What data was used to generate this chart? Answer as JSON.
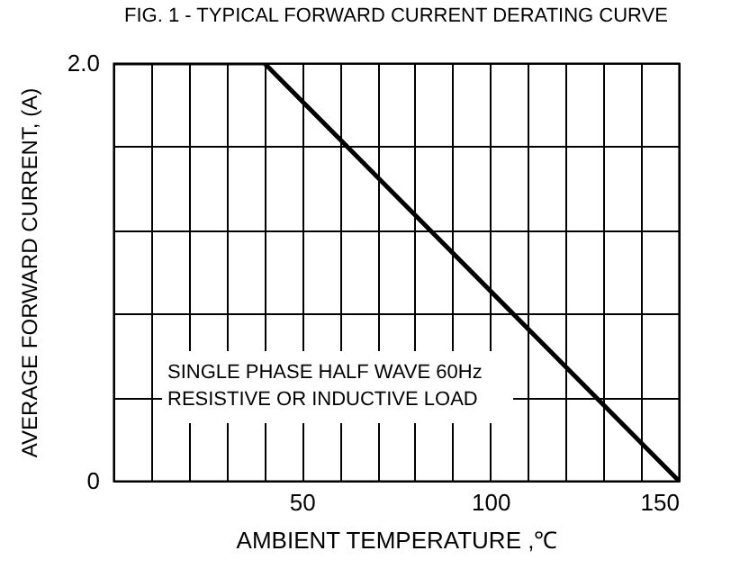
{
  "chart_data": {
    "type": "line",
    "title": "FIG. 1 - TYPICAL FORWARD CURRENT DERATING CURVE",
    "xlabel": "AMBIENT TEMPERATURE ,℃",
    "ylabel": "AVERAGE FORWARD CURRENT, (A)",
    "annotations": [
      "SINGLE PHASE HALF WAVE  60Hz",
      "RESISTIVE OR INDUCTIVE LOAD"
    ],
    "x": [
      0,
      40,
      150
    ],
    "series": [
      {
        "color": "#000000",
        "values": [
          2.0,
          2.0,
          0
        ]
      }
    ],
    "xlim": [
      0,
      150
    ],
    "xticks": [
      {
        "value": 0,
        "label": null
      },
      {
        "value": 10,
        "label": null
      },
      {
        "value": 20,
        "label": null
      },
      {
        "value": 30,
        "label": null
      },
      {
        "value": 40,
        "label": null
      },
      50,
      {
        "value": 60,
        "label": null
      },
      {
        "value": 70,
        "label": null
      },
      {
        "value": 80,
        "label": null
      },
      {
        "value": 90,
        "label": null
      },
      100,
      {
        "value": 110,
        "label": null
      },
      {
        "value": 120,
        "label": null
      },
      {
        "value": 130,
        "label": null
      },
      {
        "value": 140,
        "label": null
      },
      150
    ],
    "ylim": [
      0,
      2.0
    ],
    "yticks": [
      0,
      {
        "value": 0.4,
        "label": null
      },
      {
        "value": 0.8,
        "label": null
      },
      {
        "value": 1.2,
        "label": null
      },
      {
        "value": 1.6,
        "label": null
      },
      {
        "value": 2.0,
        "label": "2.0"
      }
    ],
    "grid": true,
    "marker": "none",
    "line_style": "solid"
  }
}
